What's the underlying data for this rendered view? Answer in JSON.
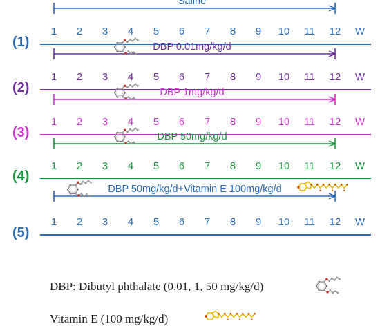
{
  "week_numbers": [
    "1",
    "2",
    "3",
    "4",
    "5",
    "6",
    "7",
    "8",
    "9",
    "10",
    "11",
    "12"
  ],
  "week_unit": "W",
  "groups": [
    {
      "number": "(1)",
      "treatment": "Saline",
      "color": "#2b6cb8",
      "has_dbp": false,
      "has_vite": false
    },
    {
      "number": "(2)",
      "treatment": "DBP 0.01mg/kg/d",
      "color": "#7030a0",
      "has_dbp": true,
      "has_vite": false
    },
    {
      "number": "(3)",
      "treatment": "DBP 1mg/kg/d",
      "color": "#cc33cc",
      "has_dbp": true,
      "has_vite": false
    },
    {
      "number": "(4)",
      "treatment": "DBP 50mg/kg/d",
      "color": "#1a9641",
      "has_dbp": true,
      "has_vite": false
    },
    {
      "number": "(5)",
      "treatment": "DBP 50mg/kg/d+Vitamin E 100mg/kg/d",
      "color": "#2b6cb8",
      "has_dbp": true,
      "has_vite": true
    }
  ],
  "legend": {
    "dbp": "DBP: Dibutyl phthalate (0.01, 1, 50 mg/kg/d)",
    "vite": "Vitamin E (100 mg/kg/d)"
  },
  "colors": {
    "text": "#222222",
    "molecule_gray": "#888888",
    "molecule_red": "#c0392b",
    "vite_yellow": "#e6b800",
    "vite_orange": "#d35400"
  },
  "icons": {
    "dbp": "dbp-molecule-icon",
    "vite": "vitamin-e-molecule-icon"
  }
}
